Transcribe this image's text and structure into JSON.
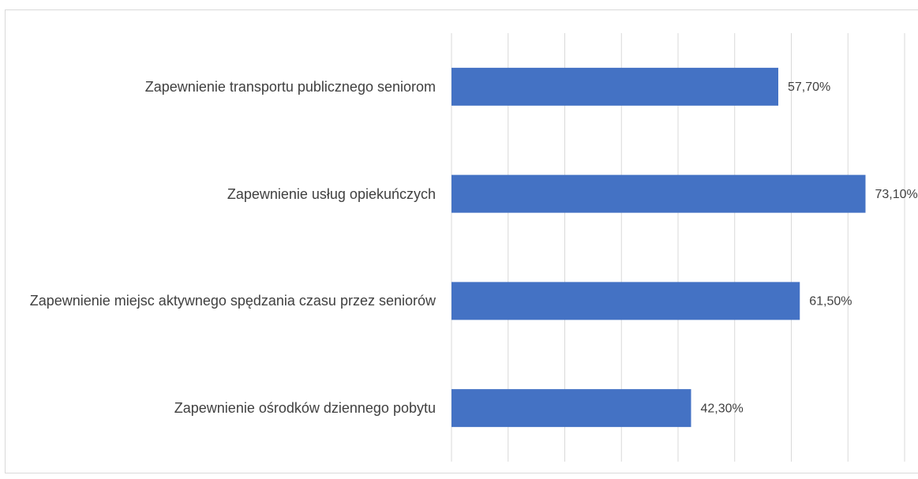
{
  "chart_data": {
    "type": "barh",
    "categories": [
      "Zapewnienie transportu publicznego seniorom",
      "Zapewnienie usług opiekuńczych",
      "Zapewnienie miejsc aktywnego spędzania czasu przez seniorów",
      "Zapewnienie ośrodków dziennego pobytu"
    ],
    "values": [
      57.7,
      73.1,
      61.5,
      42.3
    ],
    "value_labels": [
      "57,70%",
      "73,10%",
      "61,50%",
      "42,30%"
    ],
    "color": "#4472c4",
    "xlim": [
      0,
      80
    ],
    "xticks": [
      0,
      10,
      20,
      30,
      40,
      50,
      60,
      70,
      80
    ],
    "grid": true
  }
}
